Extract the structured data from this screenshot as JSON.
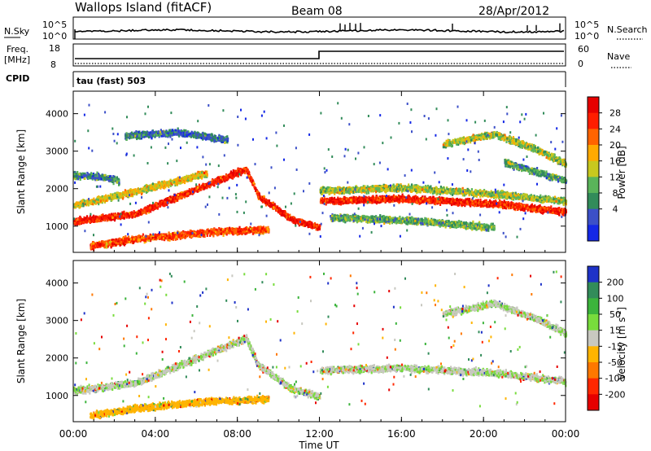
{
  "header": {
    "station": "Wallops Island (fitACF)",
    "beam": "Beam 08",
    "date": "28/Apr/2012"
  },
  "top_panels": {
    "nsky_label": "N.Sky",
    "nsky_tick_top": "10^5",
    "nsky_tick_bottom": "10^0",
    "nsearch_label": "N.Search",
    "nsearch_tick_top": "10^5",
    "nsearch_tick_bottom": "10^0",
    "freq_label": "Freq.",
    "freq_unit": "[MHz]",
    "freq_tick_top": "18",
    "freq_tick_bottom": "8",
    "nave_label": "Nave",
    "nave_tick_top": "60",
    "nave_tick_bottom": "0",
    "cpid_label": "CPID",
    "cpid_value": "tau (fast) 503"
  },
  "chart_data": [
    {
      "type": "heatmap",
      "name": "power",
      "xlabel": "Time UT",
      "ylabel": "Slant Range [km]",
      "xlim": [
        0,
        24
      ],
      "ylim": [
        300,
        4600
      ],
      "x_ticks": [
        "00:00",
        "04:00",
        "08:00",
        "12:00",
        "16:00",
        "20:00",
        "00:00"
      ],
      "y_ticks": [
        "1000",
        "2000",
        "3000",
        "4000"
      ],
      "colorbar": {
        "label": "Power [dB]",
        "ticks": [
          "4",
          "8",
          "12",
          "16",
          "20",
          "24",
          "28"
        ],
        "colors": [
          "#1428e6",
          "#3c50c8",
          "#328c5a",
          "#5ab45a",
          "#c8c81e",
          "#ffaa00",
          "#ff6400",
          "#ff1e00",
          "#e60000"
        ]
      },
      "bands": [
        {
          "t": [
            0.0,
            3.0,
            6.3,
            8.4,
            9.0,
            10.6,
            12.0
          ],
          "r": [
            1120,
            1320,
            2050,
            2520,
            1800,
            1180,
            960
          ],
          "level": 0.9
        },
        {
          "t": [
            0.8,
            3.0,
            6.8,
            9.5
          ],
          "r": [
            460,
            650,
            840,
            900
          ],
          "level": 0.8
        },
        {
          "t": [
            0.0,
            3.0,
            6.5
          ],
          "r": [
            1540,
            1920,
            2400
          ],
          "level": 0.55
        },
        {
          "t": [
            0.0,
            1.5,
            2.2
          ],
          "r": [
            2360,
            2300,
            2200
          ],
          "level": 0.25
        },
        {
          "t": [
            12.0,
            16.0,
            21.0,
            24.0
          ],
          "r": [
            1660,
            1730,
            1570,
            1370
          ],
          "level": 0.9
        },
        {
          "t": [
            12.0,
            16.0,
            21.0,
            24.0
          ],
          "r": [
            1940,
            2020,
            1830,
            1650
          ],
          "level": 0.45
        },
        {
          "t": [
            12.5,
            16.0,
            20.5
          ],
          "r": [
            1220,
            1160,
            960
          ],
          "level": 0.35
        },
        {
          "t": [
            18.0,
            20.5,
            22.5,
            24.0
          ],
          "r": [
            3170,
            3450,
            3050,
            2650
          ],
          "level": 0.45
        },
        {
          "t": [
            21.0,
            22.5,
            24.0
          ],
          "r": [
            2700,
            2450,
            2200
          ],
          "level": 0.3
        },
        {
          "t": [
            2.5,
            5.0,
            7.5
          ],
          "r": [
            3400,
            3500,
            3300
          ],
          "level": 0.2
        }
      ]
    },
    {
      "type": "heatmap",
      "name": "velocity",
      "xlabel": "Time UT",
      "ylabel": "Slant Range [km]",
      "xlim": [
        0,
        24
      ],
      "ylim": [
        300,
        4600
      ],
      "x_ticks": [
        "00:00",
        "04:00",
        "08:00",
        "12:00",
        "16:00",
        "20:00",
        "00:00"
      ],
      "y_ticks": [
        "1000",
        "2000",
        "3000",
        "4000"
      ],
      "colorbar": {
        "label": "Velocity [m s^-1]",
        "ticks": [
          "200",
          "100",
          "50",
          "15",
          "-15",
          "-50",
          "-100",
          "-200"
        ],
        "colors": [
          "#1e32c8",
          "#328c5a",
          "#3cb43c",
          "#78dc3c",
          "#c8c8c0",
          "#ffb400",
          "#ff7800",
          "#ff2800",
          "#e60000"
        ]
      },
      "bands": [
        {
          "t": [
            0.8,
            3.0,
            6.8,
            9.5
          ],
          "r": [
            460,
            650,
            840,
            900
          ],
          "level": 0.62
        },
        {
          "t": [
            0.0,
            3.0,
            6.3,
            8.4,
            9.0,
            10.6,
            12.0
          ],
          "r": [
            1120,
            1320,
            2050,
            2520,
            1800,
            1180,
            960
          ],
          "level": 0.45
        },
        {
          "t": [
            12.0,
            16.0,
            21.0,
            24.0
          ],
          "r": [
            1660,
            1730,
            1570,
            1370
          ],
          "level": 0.45
        },
        {
          "t": [
            18.0,
            20.5,
            22.5,
            24.0
          ],
          "r": [
            3170,
            3450,
            3050,
            2650
          ],
          "level": 0.45
        }
      ]
    }
  ]
}
